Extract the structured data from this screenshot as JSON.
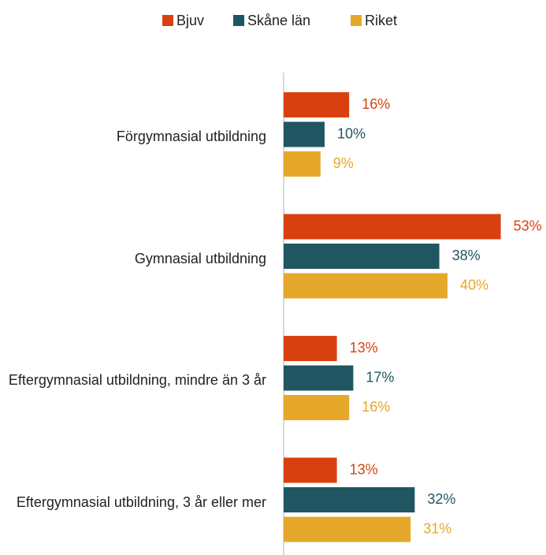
{
  "chart_data": {
    "type": "bar",
    "orientation": "horizontal",
    "categories": [
      "Förgymnasial utbildning",
      "Gymnasial utbildning",
      "Eftergymnasial utbildning, mindre än 3 år",
      "Eftergymnasial utbildning, 3 år eller mer"
    ],
    "series": [
      {
        "name": "Bjuv",
        "color": "#d9400f",
        "values": [
          16,
          53,
          13,
          13
        ],
        "value_labels": [
          "16%",
          "53%",
          "13%",
          "13%"
        ]
      },
      {
        "name": "Skåne län",
        "color": "#1f5661",
        "values": [
          10,
          38,
          17,
          32
        ],
        "value_labels": [
          "10%",
          "38%",
          "17%",
          "32%"
        ]
      },
      {
        "name": "Riket",
        "color": "#e5a82a",
        "values": [
          9,
          40,
          16,
          31
        ],
        "value_labels": [
          "9%",
          "40%",
          "16%",
          "31%"
        ]
      }
    ],
    "legend": "top"
  }
}
